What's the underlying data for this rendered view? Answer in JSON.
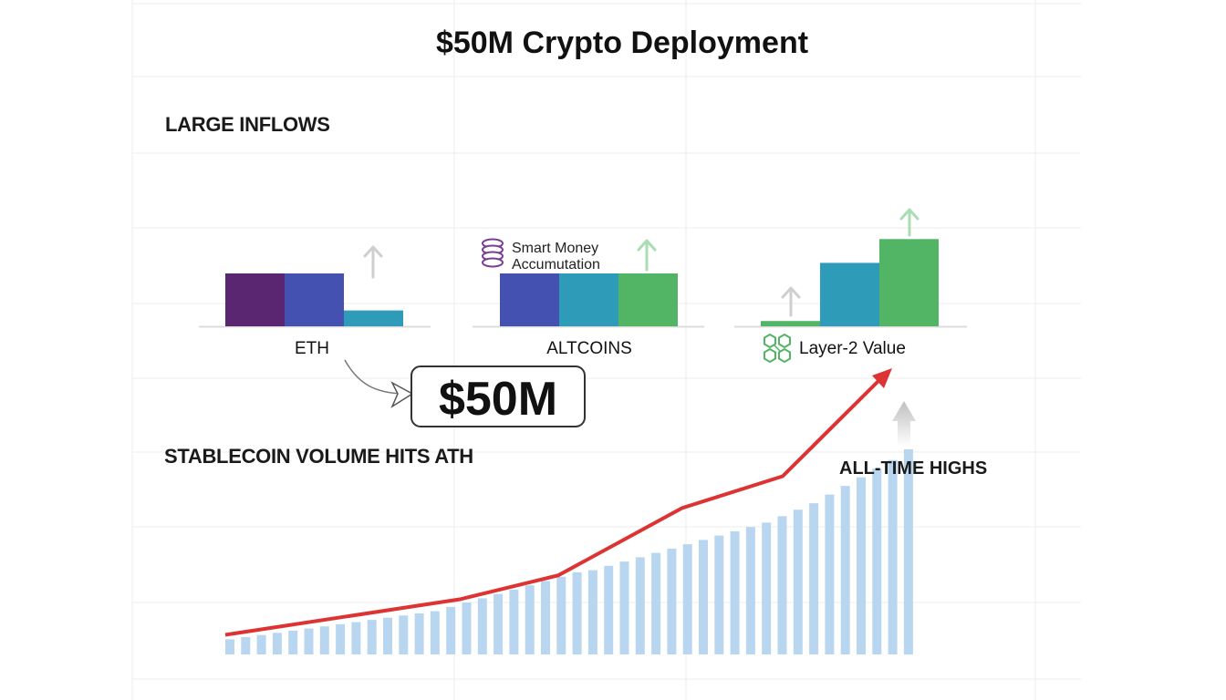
{
  "title": "$50M Crypto Deployment",
  "sections": {
    "inflows_label": "LARGE INFLOWS",
    "stablecoin_label": "STABLECOIN VOLUME HITS ATH",
    "ath_label": "ALL-TIME HIGHS"
  },
  "callout": {
    "value": "$50M"
  },
  "colors": {
    "purple": "#5a2672",
    "indigo": "#4451b0",
    "teal": "#2e9bb8",
    "green": "#52b566",
    "red_line": "#dd3333",
    "light_bar": "#b9d6f0",
    "arrow_gray": "#cfcfcf",
    "arrow_green": "#a9ddb4",
    "grid": "#ececec"
  },
  "chart_data": [
    {
      "type": "bar",
      "group": "ETH",
      "values": [
        1.0,
        1.0,
        0.3
      ],
      "colors": [
        "purple",
        "indigo",
        "teal"
      ],
      "arrow_icon": "up-arrow-gray"
    },
    {
      "type": "bar",
      "group": "ALTCOINS",
      "values": [
        1.0,
        1.0,
        1.0
      ],
      "colors": [
        "indigo",
        "teal",
        "green"
      ],
      "annotation": "Smart Money\nAccumutation",
      "annotation_icon": "coin-stack-icon",
      "arrow_icon": "up-arrow-green"
    },
    {
      "type": "bar",
      "group": "Layer-2 Value",
      "values": [
        0.1,
        1.2,
        1.65
      ],
      "colors": [
        "green",
        "teal",
        "green"
      ],
      "label_icon": "network-icon",
      "arrow_icons": [
        "up-arrow-gray",
        "up-arrow-green"
      ]
    },
    {
      "type": "line",
      "name": "",
      "values": [
        1,
        1.9,
        2.5,
        4.2,
        5,
        5.9,
        7.5
      ],
      "arrow_end": true
    },
    {
      "type": "bar",
      "name": "",
      "values": [
        0.7,
        0.8,
        0.9,
        1.0,
        1.1,
        1.2,
        1.3,
        1.4,
        1.5,
        1.6,
        1.7,
        1.8,
        1.9,
        2.0,
        2.2,
        2.4,
        2.6,
        2.8,
        3.0,
        3.2,
        3.4,
        3.6,
        3.8,
        3.9,
        4.1,
        4.3,
        4.5,
        4.7,
        4.9,
        5.1,
        5.3,
        5.5,
        5.7,
        5.9,
        6.1,
        6.4,
        6.7,
        7.0,
        7.4,
        7.8,
        8.2,
        8.6,
        9.0,
        9.5
      ]
    }
  ]
}
